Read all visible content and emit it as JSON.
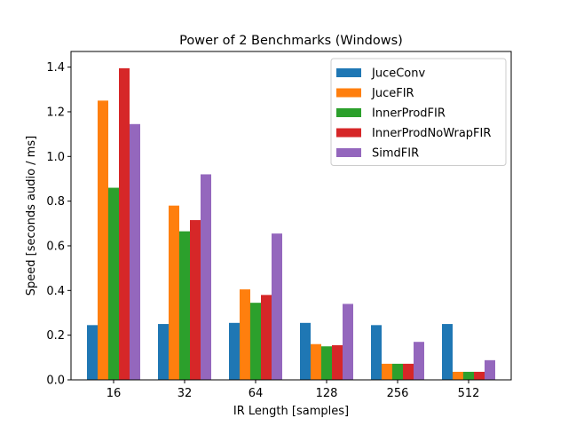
{
  "chart_data": {
    "type": "bar",
    "title": "Power of 2 Benchmarks (Windows)",
    "xlabel": "IR Length [samples]",
    "ylabel": "Speed [seconds audio / ms]",
    "categories": [
      "16",
      "32",
      "64",
      "128",
      "256",
      "512"
    ],
    "ylim": [
      0,
      1.47
    ],
    "yticks": [
      "0.0",
      "0.2",
      "0.4",
      "0.6",
      "0.8",
      "1.0",
      "1.2",
      "1.4"
    ],
    "grid": false,
    "legend": "top-right",
    "series": [
      {
        "name": "JuceConv",
        "color": "#1f77b4",
        "values": [
          0.245,
          0.25,
          0.255,
          0.255,
          0.245,
          0.25
        ]
      },
      {
        "name": "JuceFIR",
        "color": "#ff7f0e",
        "values": [
          1.25,
          0.78,
          0.405,
          0.16,
          0.072,
          0.036
        ]
      },
      {
        "name": "InnerProdFIR",
        "color": "#2ca02c",
        "values": [
          0.86,
          0.665,
          0.345,
          0.15,
          0.072,
          0.036
        ]
      },
      {
        "name": "InnerProdNoWrapFIR",
        "color": "#d62728",
        "values": [
          1.395,
          0.715,
          0.38,
          0.155,
          0.072,
          0.036
        ]
      },
      {
        "name": "SimdFIR",
        "color": "#9467bd",
        "values": [
          1.145,
          0.92,
          0.655,
          0.34,
          0.17,
          0.088
        ]
      }
    ]
  }
}
